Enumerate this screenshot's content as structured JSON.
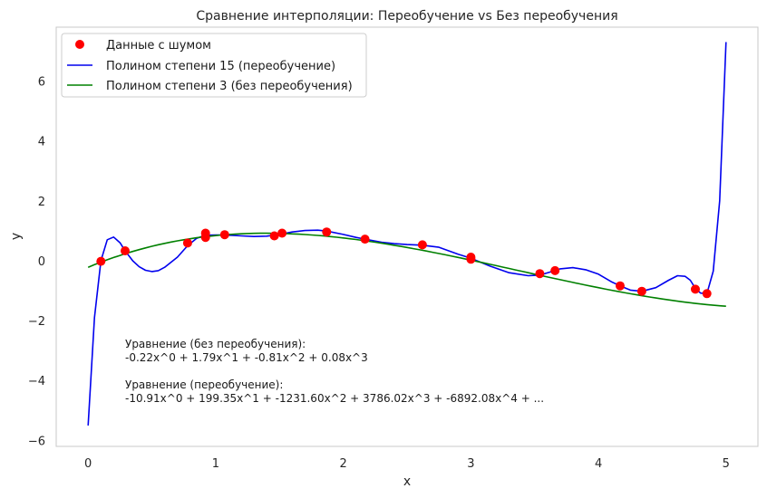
{
  "chart_data": {
    "type": "line",
    "title": "Сравнение интерполяции: Переобучение vs Без переобучения",
    "xlabel": "x",
    "ylabel": "y",
    "xlim": [
      -0.25,
      5.25
    ],
    "ylim": [
      -6.2,
      7.8
    ],
    "x_ticks": [
      0,
      1,
      2,
      3,
      4,
      5
    ],
    "y_ticks": [
      -6,
      -4,
      -2,
      0,
      2,
      4,
      6
    ],
    "y_tick_labels": [
      "−6",
      "−4",
      "−2",
      "0",
      "2",
      "4",
      "6"
    ],
    "grid": false,
    "legend_position": "top-left",
    "scatter": {
      "name": "Данные с шумом",
      "color": "#ff0000",
      "points": [
        [
          0.1,
          -0.02
        ],
        [
          0.29,
          0.33
        ],
        [
          0.78,
          0.59
        ],
        [
          0.92,
          0.92
        ],
        [
          0.92,
          0.78
        ],
        [
          1.07,
          0.87
        ],
        [
          1.46,
          0.83
        ],
        [
          1.52,
          0.92
        ],
        [
          1.87,
          0.96
        ],
        [
          2.17,
          0.72
        ],
        [
          2.62,
          0.53
        ],
        [
          3.0,
          0.05
        ],
        [
          3.0,
          0.12
        ],
        [
          3.54,
          -0.43
        ],
        [
          3.66,
          -0.33
        ],
        [
          4.17,
          -0.84
        ],
        [
          4.34,
          -1.02
        ],
        [
          4.76,
          -0.95
        ],
        [
          4.85,
          -1.1
        ]
      ]
    },
    "series": [
      {
        "name": "Полином степени 15 (переобучение)",
        "color": "#0000ee",
        "points": [
          [
            0.0,
            -5.5
          ],
          [
            0.05,
            -1.9
          ],
          [
            0.1,
            0.0
          ],
          [
            0.15,
            0.7
          ],
          [
            0.2,
            0.79
          ],
          [
            0.25,
            0.6
          ],
          [
            0.29,
            0.33
          ],
          [
            0.35,
            0.0
          ],
          [
            0.4,
            -0.2
          ],
          [
            0.45,
            -0.32
          ],
          [
            0.5,
            -0.36
          ],
          [
            0.55,
            -0.33
          ],
          [
            0.6,
            -0.22
          ],
          [
            0.7,
            0.12
          ],
          [
            0.78,
            0.5
          ],
          [
            0.85,
            0.75
          ],
          [
            0.92,
            0.85
          ],
          [
            1.0,
            0.86
          ],
          [
            1.07,
            0.86
          ],
          [
            1.2,
            0.83
          ],
          [
            1.3,
            0.81
          ],
          [
            1.4,
            0.82
          ],
          [
            1.5,
            0.88
          ],
          [
            1.6,
            0.96
          ],
          [
            1.7,
            1.01
          ],
          [
            1.8,
            1.02
          ],
          [
            1.87,
            0.99
          ],
          [
            2.0,
            0.88
          ],
          [
            2.1,
            0.78
          ],
          [
            2.17,
            0.72
          ],
          [
            2.3,
            0.62
          ],
          [
            2.4,
            0.57
          ],
          [
            2.5,
            0.54
          ],
          [
            2.62,
            0.52
          ],
          [
            2.75,
            0.45
          ],
          [
            2.9,
            0.22
          ],
          [
            3.0,
            0.08
          ],
          [
            3.15,
            -0.18
          ],
          [
            3.3,
            -0.4
          ],
          [
            3.45,
            -0.5
          ],
          [
            3.54,
            -0.48
          ],
          [
            3.62,
            -0.38
          ],
          [
            3.7,
            -0.27
          ],
          [
            3.8,
            -0.23
          ],
          [
            3.9,
            -0.3
          ],
          [
            4.0,
            -0.45
          ],
          [
            4.1,
            -0.7
          ],
          [
            4.17,
            -0.84
          ],
          [
            4.25,
            -0.98
          ],
          [
            4.34,
            -1.02
          ],
          [
            4.45,
            -0.9
          ],
          [
            4.55,
            -0.65
          ],
          [
            4.62,
            -0.5
          ],
          [
            4.68,
            -0.52
          ],
          [
            4.72,
            -0.65
          ],
          [
            4.76,
            -0.92
          ],
          [
            4.8,
            -1.08
          ],
          [
            4.85,
            -1.1
          ],
          [
            4.9,
            -0.35
          ],
          [
            4.95,
            2.0
          ],
          [
            5.0,
            7.3
          ]
        ]
      },
      {
        "name": "Полином степени 3 (без переобучения)",
        "color": "#008000",
        "coefficients": [
          -0.22,
          1.79,
          -0.81,
          0.08
        ],
        "x_range": [
          0,
          5
        ]
      }
    ],
    "annotation": {
      "line1": "Уравнение (без переобучения):",
      "line2": "-0.22x^0 + 1.79x^1 + -0.81x^2 + 0.08x^3",
      "line3": "Уравнение (переобучение):",
      "line4": "-10.91x^0 + 199.35x^1 + -1231.60x^2 + 3786.02x^3 + -6892.08x^4 + ..."
    }
  }
}
